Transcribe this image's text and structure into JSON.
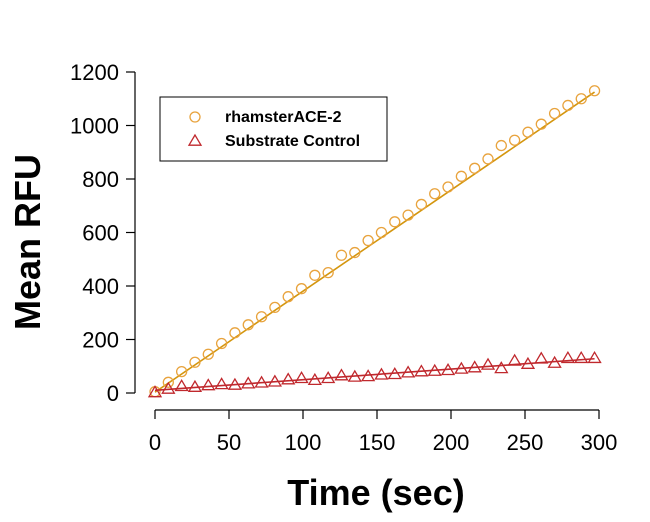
{
  "chart_data": {
    "type": "scatter",
    "xlabel": "Time (sec)",
    "ylabel": "Mean RFU",
    "xlim": [
      0,
      300
    ],
    "ylim": [
      0,
      1200
    ],
    "x_ticks": [
      0,
      50,
      100,
      150,
      200,
      250,
      300
    ],
    "y_ticks": [
      0,
      200,
      400,
      600,
      800,
      1000,
      1200
    ],
    "grid": false,
    "legend_position": "top-left",
    "series": [
      {
        "name": "rhamsterACE-2",
        "marker": "circle",
        "color": "#E8A33D",
        "line_color": "#D4960E",
        "fit": [
          3,
          1125
        ],
        "x": [
          0,
          9,
          18,
          27,
          36,
          45,
          54,
          63,
          72,
          81,
          90,
          99,
          108,
          117,
          126,
          135,
          144,
          153,
          162,
          171,
          180,
          189,
          198,
          207,
          216,
          225,
          234,
          243,
          252,
          261,
          270,
          279,
          288,
          297
        ],
        "y": [
          5,
          40,
          80,
          115,
          145,
          185,
          225,
          255,
          285,
          320,
          360,
          390,
          440,
          450,
          515,
          525,
          570,
          600,
          640,
          665,
          705,
          745,
          770,
          810,
          840,
          875,
          925,
          945,
          975,
          1005,
          1045,
          1075,
          1100,
          1130
        ]
      },
      {
        "name": "Substrate Control",
        "marker": "triangle",
        "color": "#C0282D",
        "line_color": "#C0282D",
        "fit": [
          10,
          128
        ],
        "x": [
          0,
          9,
          18,
          27,
          36,
          45,
          54,
          63,
          72,
          81,
          90,
          99,
          108,
          117,
          126,
          135,
          144,
          153,
          162,
          171,
          180,
          189,
          198,
          207,
          216,
          225,
          234,
          243,
          252,
          261,
          270,
          279,
          288,
          297
        ],
        "y": [
          2,
          15,
          25,
          22,
          28,
          32,
          30,
          35,
          38,
          42,
          50,
          55,
          48,
          55,
          65,
          60,
          62,
          68,
          70,
          76,
          80,
          82,
          85,
          90,
          95,
          105,
          92,
          120,
          108,
          128,
          112,
          130,
          130,
          130
        ]
      }
    ]
  }
}
